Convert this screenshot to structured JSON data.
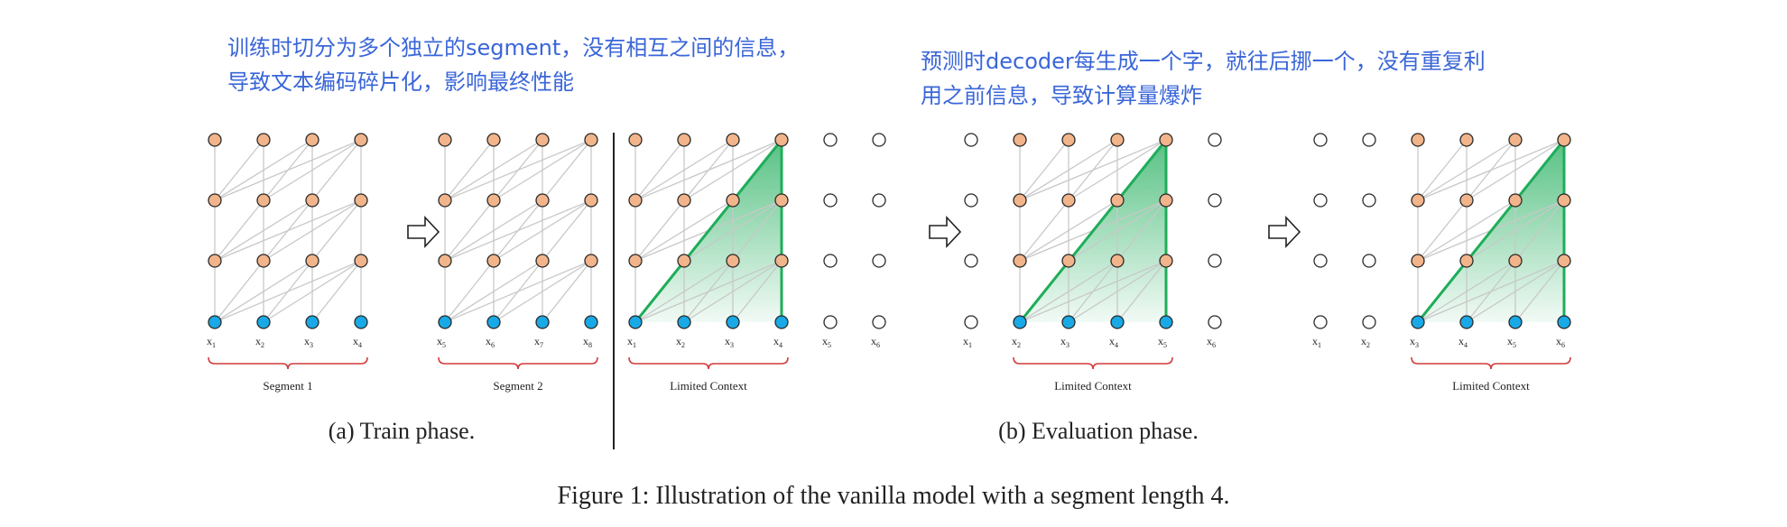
{
  "annotations": {
    "train_note": "训练时切分为多个独立的segment，没有相互之间的信息，\n导致文本编码碎片化，影响最终性能",
    "eval_note": "预测时decoder每生成一个字，就往后挪一个，没有重复利\n用之前信息，导致计算量爆炸"
  },
  "panels": [
    {
      "tokens": [
        "x",
        "x",
        "x",
        "x"
      ],
      "subscripts": [
        "1",
        "2",
        "3",
        "4"
      ],
      "brace_label": "Segment 1"
    },
    {
      "tokens": [
        "x",
        "x",
        "x",
        "x"
      ],
      "subscripts": [
        "5",
        "6",
        "7",
        "8"
      ],
      "brace_label": "Segment 2"
    },
    {
      "tokens": [
        "x",
        "x",
        "x",
        "x",
        "x",
        "x"
      ],
      "subscripts": [
        "1",
        "2",
        "3",
        "4",
        "5",
        "6"
      ],
      "brace_label": "Limited Context"
    },
    {
      "tokens": [
        "x",
        "x",
        "x",
        "x",
        "x",
        "x"
      ],
      "subscripts": [
        "1",
        "2",
        "3",
        "4",
        "5",
        "6"
      ],
      "brace_label": "Limited Context"
    },
    {
      "tokens": [
        "x",
        "x",
        "x",
        "x",
        "x",
        "x"
      ],
      "subscripts": [
        "1",
        "2",
        "3",
        "4",
        "5",
        "6"
      ],
      "brace_label": "Limited Context"
    }
  ],
  "subcaptions": {
    "train": "(a) Train phase.",
    "eval": "(b) Evaluation phase."
  },
  "caption": "Figure 1: Illustration of the vanilla model with a segment length 4.",
  "colors": {
    "input_node": "#19a9e6",
    "hidden_node": "#f2b48a",
    "empty_node": "#ffffff",
    "node_stroke": "#2a2a2a",
    "connection": "#c8c8c8",
    "context_triangle": "#1fad5a",
    "brace": "#d23c3c",
    "annotation_text": "#3a66d8"
  }
}
